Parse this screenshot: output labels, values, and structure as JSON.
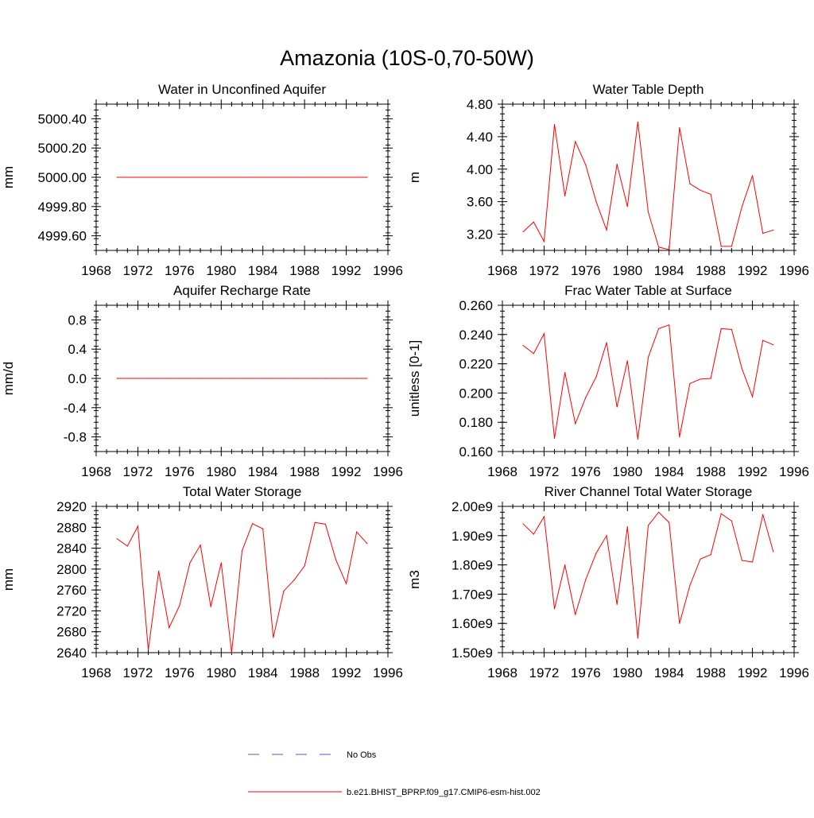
{
  "figure_title": "Amazonia (10S-0,70-50W)",
  "colors": {
    "model": "#ff0000",
    "obs": "#4a5fc1",
    "axis": "#000000"
  },
  "legend": {
    "obs_label": "No Obs",
    "model_label": "b.e21.BHIST_BPRP.f09_g17.CMIP6-esm-hist.002"
  },
  "chart_data": [
    {
      "type": "line",
      "title": "Water in Unconfined Aquifer",
      "ylabel": "mm",
      "xlim": [
        1968,
        1996
      ],
      "xticks": [
        1968,
        1972,
        1976,
        1980,
        1984,
        1988,
        1992,
        1996
      ],
      "ylim": [
        4999.5,
        5000.5
      ],
      "yticks": [
        4999.6,
        4999.8,
        5000.0,
        5000.2,
        5000.4
      ],
      "ytick_labels": [
        "4999.60",
        "4999.80",
        "5000.00",
        "5000.20",
        "5000.40"
      ],
      "minor_y": 0.04,
      "x": [
        1970,
        1971,
        1972,
        1973,
        1974,
        1975,
        1976,
        1977,
        1978,
        1979,
        1980,
        1981,
        1982,
        1983,
        1984,
        1985,
        1986,
        1987,
        1988,
        1989,
        1990,
        1991,
        1992,
        1993,
        1994
      ],
      "series": [
        {
          "name": "b.e21.BHIST_BPRP.f09_g17.CMIP6-esm-hist.002",
          "values": [
            5000,
            5000,
            5000,
            5000,
            5000,
            5000,
            5000,
            5000,
            5000,
            5000,
            5000,
            5000,
            5000,
            5000,
            5000,
            5000,
            5000,
            5000,
            5000,
            5000,
            5000,
            5000,
            5000,
            5000,
            5000
          ]
        }
      ]
    },
    {
      "type": "line",
      "title": "Water Table Depth",
      "ylabel": "m",
      "xlim": [
        1968,
        1996
      ],
      "xticks": [
        1968,
        1972,
        1976,
        1980,
        1984,
        1988,
        1992,
        1996
      ],
      "ylim": [
        3.0,
        4.8
      ],
      "yticks": [
        3.2,
        3.6,
        4.0,
        4.4,
        4.8
      ],
      "ytick_labels": [
        "3.20",
        "3.60",
        "4.00",
        "4.40",
        "4.80"
      ],
      "minor_y": 0.08,
      "x": [
        1970,
        1971,
        1972,
        1973,
        1974,
        1975,
        1976,
        1977,
        1978,
        1979,
        1980,
        1981,
        1982,
        1983,
        1984,
        1985,
        1986,
        1987,
        1988,
        1989,
        1990,
        1991,
        1992,
        1993,
        1994
      ],
      "series": [
        {
          "name": "b.e21.BHIST_BPRP.f09_g17.CMIP6-esm-hist.002",
          "values": [
            3.23,
            3.35,
            3.11,
            4.55,
            3.67,
            4.34,
            4.05,
            3.6,
            3.25,
            4.06,
            3.54,
            4.58,
            3.47,
            3.04,
            3.01,
            4.51,
            3.82,
            3.74,
            3.69,
            3.05,
            3.05,
            3.54,
            3.92,
            3.21,
            3.25
          ]
        }
      ]
    },
    {
      "type": "line",
      "title": "Aquifer Recharge Rate",
      "ylabel": "mm/d",
      "xlim": [
        1968,
        1996
      ],
      "xticks": [
        1968,
        1972,
        1976,
        1980,
        1984,
        1988,
        1992,
        1996
      ],
      "ylim": [
        -1.0,
        1.0
      ],
      "yticks": [
        -0.8,
        -0.4,
        0.0,
        0.4,
        0.8
      ],
      "ytick_labels": [
        "-0.8",
        "-0.4",
        "0.0",
        "0.4",
        "0.8"
      ],
      "minor_y": 0.08,
      "x": [
        1970,
        1971,
        1972,
        1973,
        1974,
        1975,
        1976,
        1977,
        1978,
        1979,
        1980,
        1981,
        1982,
        1983,
        1984,
        1985,
        1986,
        1987,
        1988,
        1989,
        1990,
        1991,
        1992,
        1993,
        1994
      ],
      "series": [
        {
          "name": "b.e21.BHIST_BPRP.f09_g17.CMIP6-esm-hist.002",
          "values": [
            0,
            0,
            0,
            0,
            0,
            0,
            0,
            0,
            0,
            0,
            0,
            0,
            0,
            0,
            0,
            0,
            0,
            0,
            0,
            0,
            0,
            0,
            0,
            0,
            0
          ]
        }
      ]
    },
    {
      "type": "line",
      "title": "Frac Water Table at Surface",
      "ylabel": "unitless [0-1]",
      "xlim": [
        1968,
        1996
      ],
      "xticks": [
        1968,
        1972,
        1976,
        1980,
        1984,
        1988,
        1992,
        1996
      ],
      "ylim": [
        0.16,
        0.26
      ],
      "yticks": [
        0.16,
        0.18,
        0.2,
        0.22,
        0.24,
        0.26
      ],
      "ytick_labels": [
        "0.160",
        "0.180",
        "0.200",
        "0.220",
        "0.240",
        "0.260"
      ],
      "minor_y": 0.004,
      "x": [
        1970,
        1971,
        1972,
        1973,
        1974,
        1975,
        1976,
        1977,
        1978,
        1979,
        1980,
        1981,
        1982,
        1983,
        1984,
        1985,
        1986,
        1987,
        1988,
        1989,
        1990,
        1991,
        1992,
        1993,
        1994
      ],
      "series": [
        {
          "name": "b.e21.BHIST_BPRP.f09_g17.CMIP6-esm-hist.002",
          "values": [
            0.2325,
            0.227,
            0.2405,
            0.169,
            0.214,
            0.179,
            0.197,
            0.211,
            0.2345,
            0.1905,
            0.222,
            0.1685,
            0.2245,
            0.244,
            0.2465,
            0.17,
            0.2065,
            0.2095,
            0.21,
            0.244,
            0.2435,
            0.2165,
            0.1975,
            0.236,
            0.233
          ]
        }
      ]
    },
    {
      "type": "line",
      "title": "Total Water Storage",
      "ylabel": "mm",
      "xlim": [
        1968,
        1996
      ],
      "xticks": [
        1968,
        1972,
        1976,
        1980,
        1984,
        1988,
        1992,
        1996
      ],
      "ylim": [
        2640,
        2920
      ],
      "yticks": [
        2640,
        2680,
        2720,
        2760,
        2800,
        2840,
        2880,
        2920
      ],
      "ytick_labels": [
        "2640",
        "2680",
        "2720",
        "2760",
        "2800",
        "2840",
        "2880",
        "2920"
      ],
      "minor_y": 8,
      "x": [
        1970,
        1971,
        1972,
        1973,
        1974,
        1975,
        1976,
        1977,
        1978,
        1979,
        1980,
        1981,
        1982,
        1983,
        1984,
        1985,
        1986,
        1987,
        1988,
        1989,
        1990,
        1991,
        1992,
        1993,
        1994
      ],
      "series": [
        {
          "name": "b.e21.BHIST_BPRP.f09_g17.CMIP6-esm-hist.002",
          "values": [
            2858,
            2844,
            2882,
            2645,
            2796,
            2688,
            2730,
            2812,
            2846,
            2728,
            2812,
            2640,
            2835,
            2887,
            2877,
            2669,
            2758,
            2779,
            2806,
            2889,
            2886,
            2818,
            2772,
            2871,
            2849
          ]
        }
      ]
    },
    {
      "type": "line",
      "title": "River Channel Total Water Storage",
      "ylabel": "m3",
      "xlim": [
        1968,
        1996
      ],
      "xticks": [
        1968,
        1972,
        1976,
        1980,
        1984,
        1988,
        1992,
        1996
      ],
      "ylim": [
        1500000000.0,
        2000000000.0
      ],
      "yticks": [
        1500000000.0,
        1600000000.0,
        1700000000.0,
        1800000000.0,
        1900000000.0,
        2000000000.0
      ],
      "ytick_labels": [
        "1.50e9",
        "1.60e9",
        "1.70e9",
        "1.80e9",
        "1.90e9",
        "2.00e9"
      ],
      "minor_y": 20000000.0,
      "x": [
        1970,
        1971,
        1972,
        1973,
        1974,
        1975,
        1976,
        1977,
        1978,
        1979,
        1980,
        1981,
        1982,
        1983,
        1984,
        1985,
        1986,
        1987,
        1988,
        1989,
        1990,
        1991,
        1992,
        1993,
        1994
      ],
      "series": [
        {
          "name": "b.e21.BHIST_BPRP.f09_g17.CMIP6-esm-hist.002",
          "values": [
            1940000000.0,
            1905000000.0,
            1965000000.0,
            1650000000.0,
            1800000000.0,
            1630000000.0,
            1750000000.0,
            1840000000.0,
            1900000000.0,
            1665000000.0,
            1930000000.0,
            1550000000.0,
            1935000000.0,
            1980000000.0,
            1945000000.0,
            1600000000.0,
            1730000000.0,
            1820000000.0,
            1835000000.0,
            1975000000.0,
            1950000000.0,
            1815000000.0,
            1810000000.0,
            1972000000.0,
            1845000000.0
          ]
        }
      ]
    }
  ]
}
